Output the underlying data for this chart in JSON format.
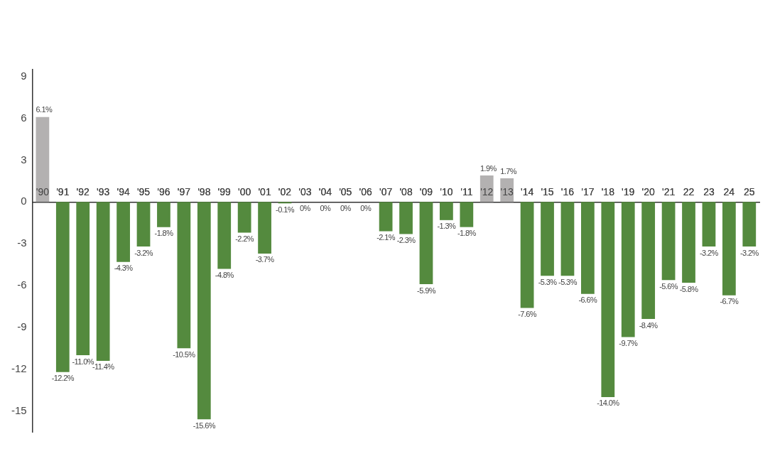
{
  "chart_data": {
    "type": "bar",
    "categories": [
      "'90",
      "'91",
      "'92",
      "'93",
      "'94",
      "'95",
      "'96",
      "'97",
      "'98",
      "'99",
      "'00",
      "'01",
      "'02",
      "'03",
      "'04",
      "'05",
      "'06",
      "'07",
      "'08",
      "'09",
      "'10",
      "'11",
      "'12",
      "'13",
      "'14",
      "'15",
      "'16",
      "'17",
      "'18",
      "'19",
      "'20",
      "'21",
      "22",
      "23",
      "24",
      "25"
    ],
    "values": [
      6.1,
      -12.2,
      -11.0,
      -11.4,
      -4.3,
      -3.2,
      -1.8,
      -10.5,
      -15.6,
      -4.8,
      -2.2,
      -3.7,
      -0.1,
      0,
      0,
      0,
      0,
      -2.1,
      -2.3,
      -5.9,
      -1.3,
      -1.8,
      1.9,
      1.7,
      -7.6,
      -5.3,
      -5.3,
      -6.6,
      -14.0,
      -9.7,
      -8.4,
      -5.6,
      -5.8,
      -3.2,
      -6.7,
      -3.2
    ],
    "value_labels": [
      "6.1%",
      "-12.2%",
      "-11.0%",
      "-11.4%",
      "-4.3%",
      "-3.2%",
      "-1.8%",
      "-10.5%",
      "-15.6%",
      "-4.8%",
      "-2.2%",
      "-3.7%",
      "-0.1%",
      "0%",
      "0%",
      "0%",
      "0%",
      "-2.1%",
      "-2.3%",
      "-5.9%",
      "-1.3%",
      "-1.8%",
      "1.9%",
      "1.7%",
      "-7.6%",
      "-5.3%",
      "-5.3%",
      "-6.6%",
      "-14.0%",
      "-9.7%",
      "-8.4%",
      "-5.6%",
      "-5.8%",
      "-3.2%",
      "-6.7%",
      "-3.2%"
    ],
    "colors": [
      "#b3b1b1",
      "#548a3e",
      "#548a3e",
      "#548a3e",
      "#548a3e",
      "#548a3e",
      "#548a3e",
      "#548a3e",
      "#548a3e",
      "#548a3e",
      "#548a3e",
      "#548a3e",
      "#548a3e",
      "#548a3e",
      "#548a3e",
      "#548a3e",
      "#548a3e",
      "#548a3e",
      "#548a3e",
      "#548a3e",
      "#548a3e",
      "#548a3e",
      "#b3b1b1",
      "#b3b1b1",
      "#548a3e",
      "#548a3e",
      "#548a3e",
      "#548a3e",
      "#548a3e",
      "#548a3e",
      "#548a3e",
      "#548a3e",
      "#548a3e",
      "#548a3e",
      "#548a3e",
      "#548a3e"
    ],
    "ylim": [
      -16.5,
      9.5
    ],
    "yticks": [
      9,
      6,
      3,
      0,
      -3,
      -6,
      -9,
      -12,
      -15
    ],
    "grid": false,
    "legend": false
  }
}
